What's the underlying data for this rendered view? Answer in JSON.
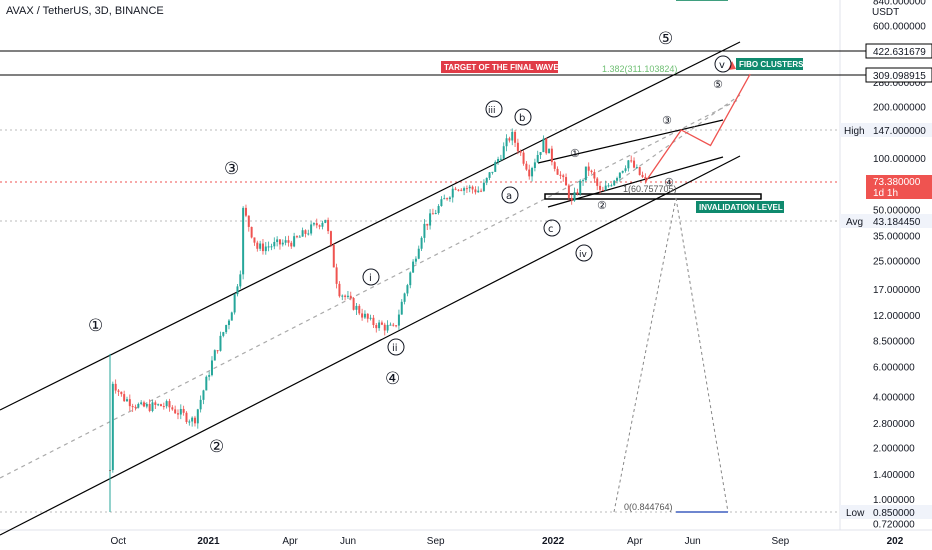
{
  "header": {
    "symbol": "AVAX / TetherUS, 3D, BINANCE"
  },
  "colors": {
    "candle_up": "#26a69a",
    "candle_down": "#ef5350",
    "projection": "#ef5350",
    "channel": "#000000",
    "label_red": "#e03b47",
    "label_green": "#0f8a6e",
    "price_red": "#ef5350",
    "axis_gray": "#e0e3eb"
  },
  "axis": {
    "currency": "USDT",
    "y_ticks": [
      "840.000000",
      "600.000000",
      "280.000000",
      "200.000000",
      "100.000000",
      "50.000000",
      "35.000000",
      "25.000000",
      "17.000000",
      "12.000000",
      "8.500000",
      "6.000000",
      "4.000000",
      "2.800000",
      "2.000000",
      "1.400000",
      "1.000000",
      "0.720000"
    ],
    "x_ticks": [
      "Oct",
      "2021",
      "Apr",
      "Jun",
      "Sep",
      "2022",
      "Apr",
      "Jun",
      "Sep",
      "202"
    ]
  },
  "price_labels": {
    "level_422": "422.631679",
    "level_309": "309.098915",
    "high_label": "High",
    "high_value": "147.000000",
    "last_price": "73.380000",
    "countdown": "1d 1h",
    "avg_label": "Avg",
    "avg_value": "43.184450",
    "low_label": "Low",
    "low_value": "0.850000"
  },
  "annotations": {
    "target": "TARGET OF THE FINAL WAVE",
    "fibo": "FIBO CLUSTERS",
    "invalidation": "INVALIDATION LEVEL",
    "fib_1382": "1.382(311.103824)",
    "fib_1": "1(60.757705)",
    "fib_0": "0(0.844764)"
  },
  "waves": {
    "w1": "①",
    "w2": "②",
    "w3": "③",
    "w4": "④",
    "w5": "⑤",
    "i": "ⓘ",
    "ii": "ⓘⓘ",
    "iii": "ⓘⓘⓘ",
    "iv": "ⓘⓥ",
    "v": "ⓥ",
    "a": "ⓐ",
    "b": "ⓑ",
    "c": "ⓒ",
    "s1": "①",
    "s2": "②",
    "s3": "③",
    "s4": "④",
    "s5": "⑤"
  },
  "chart_data": {
    "type": "candlestick",
    "title": "AVAX / TetherUS, 3D, BINANCE",
    "scale": "log",
    "ylim": [
      0.72,
      840
    ],
    "price_path": [
      {
        "x": "2020-09-22",
        "y": 1.5
      },
      {
        "x": "2020-09-23",
        "y": 5.2
      },
      {
        "x": "2020-10-05",
        "y": 4.0
      },
      {
        "x": "2020-10-25",
        "y": 3.5
      },
      {
        "x": "2020-11-20",
        "y": 3.6
      },
      {
        "x": "2020-12-20",
        "y": 2.9
      },
      {
        "x": "2021-01-10",
        "y": 7.0
      },
      {
        "x": "2021-01-28",
        "y": 12.5
      },
      {
        "x": "2021-02-08",
        "y": 24
      },
      {
        "x": "2021-02-10",
        "y": 50
      },
      {
        "x": "2021-02-25",
        "y": 30
      },
      {
        "x": "2021-04-05",
        "y": 33
      },
      {
        "x": "2021-05-08",
        "y": 45
      },
      {
        "x": "2021-05-22",
        "y": 17
      },
      {
        "x": "2021-06-25",
        "y": 11
      },
      {
        "x": "2021-07-20",
        "y": 10
      },
      {
        "x": "2021-08-20",
        "y": 40
      },
      {
        "x": "2021-09-23",
        "y": 70
      },
      {
        "x": "2021-10-20",
        "y": 65
      },
      {
        "x": "2021-11-21",
        "y": 140
      },
      {
        "x": "2021-12-10",
        "y": 85
      },
      {
        "x": "2021-12-25",
        "y": 125
      },
      {
        "x": "2022-01-20",
        "y": 65
      },
      {
        "x": "2022-01-24",
        "y": 55
      },
      {
        "x": "2022-02-10",
        "y": 90
      },
      {
        "x": "2022-02-24",
        "y": 62
      },
      {
        "x": "2022-03-25",
        "y": 98
      },
      {
        "x": "2022-04-12",
        "y": 73.38
      }
    ],
    "projection": [
      {
        "x": "2022-04-12",
        "y": 73.38
      },
      {
        "x": "2022-05-20",
        "y": 148
      },
      {
        "x": "2022-06-20",
        "y": 120
      },
      {
        "x": "2022-08-01",
        "y": 315
      }
    ],
    "levels": {
      "high": 147,
      "avg": 43.18445,
      "low": 0.85,
      "last": 73.38
    }
  }
}
